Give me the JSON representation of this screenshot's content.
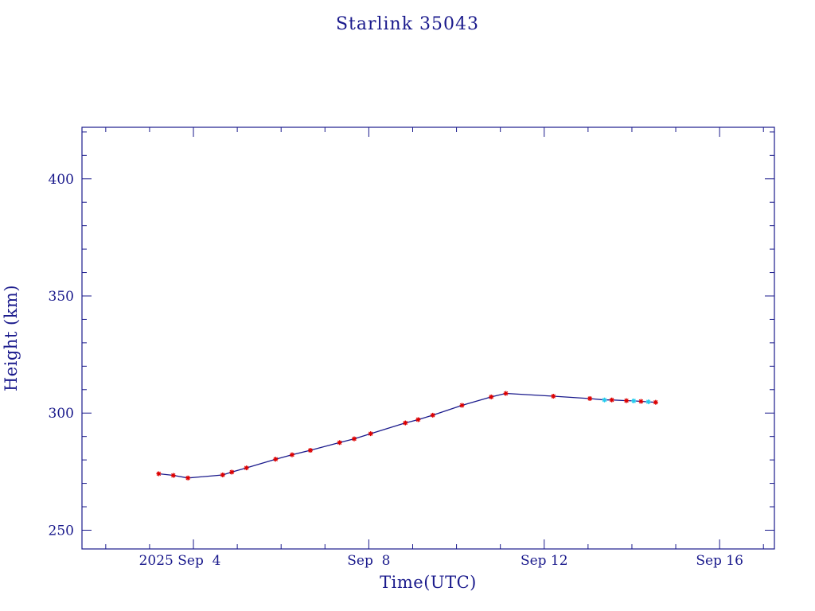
{
  "chart_data": {
    "type": "line",
    "title": "Starlink 35043",
    "xlabel": "Time(UTC)",
    "ylabel": "Height (km)",
    "x_ticks": [
      "2025 Sep  4",
      "Sep  8",
      "Sep 12",
      "Sep 16"
    ],
    "y_ticks": [
      "250",
      "300",
      "350",
      "400"
    ],
    "xlim": [
      "2025-09-01T11:00",
      "2025-09-17T06:00"
    ],
    "ylim": [
      242,
      422
    ],
    "colors": {
      "axis": "#1a1a8c",
      "line": "#1a1a8c",
      "marker": "#dd0000",
      "marker_alt": "#22ccee"
    },
    "series": [
      {
        "points": [
          {
            "t": "2025-09-03T05:00",
            "h": 274.1
          },
          {
            "t": "2025-09-03T13:00",
            "h": 273.4
          },
          {
            "t": "2025-09-03T21:00",
            "h": 272.3
          },
          {
            "t": "2025-09-04T16:00",
            "h": 273.6
          },
          {
            "t": "2025-09-04T21:00",
            "h": 274.8
          },
          {
            "t": "2025-09-05T05:00",
            "h": 276.6
          },
          {
            "t": "2025-09-05T21:00",
            "h": 280.3
          },
          {
            "t": "2025-09-06T06:00",
            "h": 282.2
          },
          {
            "t": "2025-09-06T16:00",
            "h": 284.1
          },
          {
            "t": "2025-09-07T08:00",
            "h": 287.4
          },
          {
            "t": "2025-09-07T16:00",
            "h": 289.0
          },
          {
            "t": "2025-09-08T01:00",
            "h": 291.2
          },
          {
            "t": "2025-09-08T20:00",
            "h": 295.8
          },
          {
            "t": "2025-09-09T03:00",
            "h": 297.2
          },
          {
            "t": "2025-09-09T11:00",
            "h": 299.1
          },
          {
            "t": "2025-09-10T03:00",
            "h": 303.3
          },
          {
            "t": "2025-09-10T19:00",
            "h": 306.9
          },
          {
            "t": "2025-09-11T03:00",
            "h": 308.4
          },
          {
            "t": "2025-09-12T05:00",
            "h": 307.2
          },
          {
            "t": "2025-09-13T01:00",
            "h": 306.2
          },
          {
            "t": "2025-09-13T09:00",
            "h": 305.6,
            "alt": true
          },
          {
            "t": "2025-09-13T13:00",
            "h": 305.6
          },
          {
            "t": "2025-09-13T21:00",
            "h": 305.3
          },
          {
            "t": "2025-09-14T01:00",
            "h": 305.2,
            "alt": true
          },
          {
            "t": "2025-09-14T05:00",
            "h": 305.0
          },
          {
            "t": "2025-09-14T09:00",
            "h": 304.8,
            "alt": true
          },
          {
            "t": "2025-09-14T13:00",
            "h": 304.6
          }
        ]
      }
    ]
  }
}
